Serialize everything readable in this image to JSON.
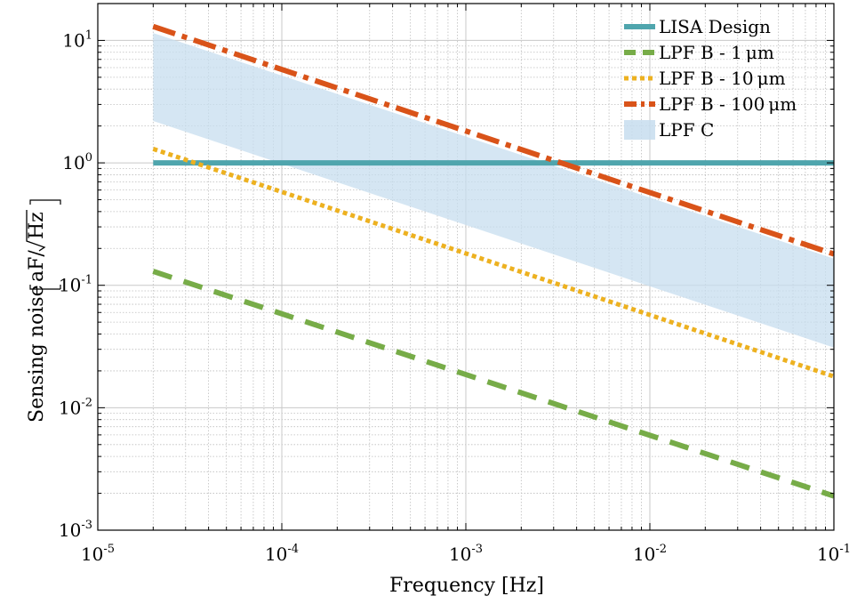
{
  "chart_data": {
    "type": "line",
    "title": "",
    "xlabel": "Frequency [Hz]",
    "ylabel_prefix": "Sensing noise",
    "ylabel_unit_text": "aF/",
    "ylabel_unit_radicand": "Hz",
    "xscale": "log",
    "yscale": "log",
    "xlim": [
      1e-05,
      0.1
    ],
    "ylim": [
      0.001,
      20
    ],
    "grid": true,
    "legend_position": "top-right",
    "x_ticks": [
      {
        "value": 1e-05,
        "base": "10",
        "exp": "-5"
      },
      {
        "value": 0.0001,
        "base": "10",
        "exp": "-4"
      },
      {
        "value": 0.001,
        "base": "10",
        "exp": "-3"
      },
      {
        "value": 0.01,
        "base": "10",
        "exp": "-2"
      },
      {
        "value": 0.1,
        "base": "10",
        "exp": "-1"
      }
    ],
    "y_ticks": [
      {
        "value": 0.001,
        "base": "10",
        "exp": "-3"
      },
      {
        "value": 0.01,
        "base": "10",
        "exp": "-2"
      },
      {
        "value": 0.1,
        "base": "10",
        "exp": "-1"
      },
      {
        "value": 1,
        "base": "10",
        "exp": "0"
      },
      {
        "value": 10,
        "base": "10",
        "exp": "1"
      }
    ],
    "series": [
      {
        "name": "LISA Design",
        "style": "solid",
        "color": "#4fa5ad",
        "x": [
          2e-05,
          0.1
        ],
        "y": [
          1.0,
          1.0
        ]
      },
      {
        "name": "LPF B - 1 μm",
        "style": "dashed",
        "color": "#77ac48",
        "x": [
          2e-05,
          0.1
        ],
        "y": [
          0.13,
          0.0019
        ]
      },
      {
        "name": "LPF B - 10 μm",
        "style": "dotted",
        "color": "#edb120",
        "x": [
          2e-05,
          0.1
        ],
        "y": [
          1.3,
          0.018
        ]
      },
      {
        "name": "LPF B - 100 μm",
        "style": "dashdot",
        "color": "#d95319",
        "x": [
          2e-05,
          0.1
        ],
        "y": [
          13,
          0.18
        ]
      }
    ],
    "band": {
      "name": "LPF C",
      "color": "#c7ddef",
      "x": [
        2e-05,
        0.1
      ],
      "upper": [
        11.5,
        0.165
      ],
      "lower": [
        2.2,
        0.031
      ]
    }
  }
}
